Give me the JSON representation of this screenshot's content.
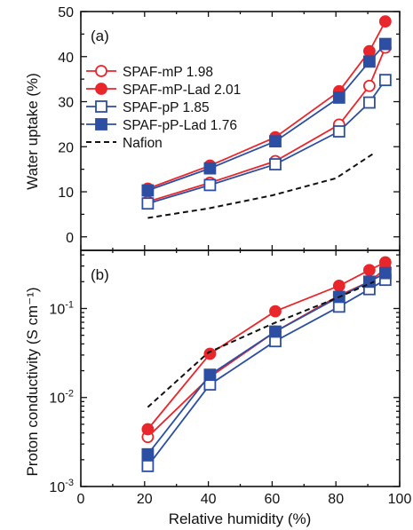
{
  "chart_data": [
    {
      "type": "line",
      "panel_label": "(a)",
      "ylabel": "Water uptake (%)",
      "xlabel": "Relative humidity (%)",
      "xlim": [
        0,
        100
      ],
      "ylim": [
        -3,
        50
      ],
      "yscale": "linear",
      "x_ticks": [
        "0",
        "20",
        "40",
        "60",
        "80",
        "100"
      ],
      "y_ticks": [
        {
          "value": 0,
          "label": "0"
        },
        {
          "value": 10,
          "label": "10"
        },
        {
          "value": 20,
          "label": "20"
        },
        {
          "value": 30,
          "label": "30"
        },
        {
          "value": 40,
          "label": "40"
        },
        {
          "value": 50,
          "label": "50"
        }
      ],
      "legend_position": "top-left",
      "series": [
        {
          "name": "SPAF-mP 1.98",
          "color": "#e8262b",
          "marker": "circle",
          "filled": false,
          "x": [
            21,
            40.5,
            61,
            81,
            90.5,
            95.5
          ],
          "y": [
            7.8,
            12,
            16.8,
            24.9,
            33.5,
            42
          ]
        },
        {
          "name": "SPAF-mP-Lad 2.01",
          "color": "#e8262b",
          "marker": "circle",
          "filled": true,
          "x": [
            21,
            40.5,
            61,
            81,
            90.5,
            95.5
          ],
          "y": [
            10.7,
            15.8,
            22.1,
            32.3,
            41.2,
            47.8
          ]
        },
        {
          "name": "SPAF-pP 1.85",
          "color": "#2c4ea3",
          "marker": "square",
          "filled": false,
          "x": [
            21,
            40.5,
            61,
            81,
            90.5,
            95.5
          ],
          "y": [
            7.4,
            11.5,
            16.1,
            23.4,
            29.8,
            34.8
          ]
        },
        {
          "name": "SPAF-pP-Lad 1.76",
          "color": "#2c4ea3",
          "marker": "square",
          "filled": true,
          "x": [
            21,
            40.5,
            61,
            81,
            90.5,
            95.5
          ],
          "y": [
            10.3,
            15.2,
            21.2,
            30.9,
            38.9,
            42.8
          ]
        },
        {
          "name": "Nafion",
          "color": "#111111",
          "marker": "none",
          "dashed": true,
          "x": [
            21,
            40,
            60,
            80,
            92
          ],
          "y": [
            4.2,
            6.3,
            9.2,
            13,
            18.6
          ]
        }
      ]
    },
    {
      "type": "line",
      "panel_label": "(b)",
      "ylabel": "Proton conductivity (S cm⁻¹)",
      "xlabel": "Relative humidity (%)",
      "xlim": [
        0,
        100
      ],
      "ylim": [
        0.001,
        0.45
      ],
      "yscale": "log",
      "x_ticks": [
        "0",
        "20",
        "40",
        "60",
        "80",
        "100"
      ],
      "y_ticks": [
        {
          "value": 0.001,
          "base": "10",
          "exp": "-3"
        },
        {
          "value": 0.01,
          "base": "10",
          "exp": "-2"
        },
        {
          "value": 0.1,
          "base": "10",
          "exp": "-1"
        }
      ],
      "series": [
        {
          "name": "SPAF-mP 1.98",
          "color": "#e8262b",
          "marker": "circle",
          "filled": false,
          "x": [
            21,
            40.5,
            61,
            81,
            90.5,
            95.5
          ],
          "y": [
            0.0036,
            0.017,
            0.055,
            0.14,
            0.2,
            0.28
          ]
        },
        {
          "name": "SPAF-mP-Lad 2.01",
          "color": "#e8262b",
          "marker": "circle",
          "filled": true,
          "x": [
            21,
            40.5,
            61,
            81,
            90.5,
            95.5
          ],
          "y": [
            0.0044,
            0.031,
            0.093,
            0.18,
            0.27,
            0.33
          ]
        },
        {
          "name": "SPAF-pP 1.85",
          "color": "#2c4ea3",
          "marker": "square",
          "filled": false,
          "x": [
            21,
            40.5,
            61,
            81,
            90.5,
            95.5
          ],
          "y": [
            0.0017,
            0.014,
            0.043,
            0.105,
            0.165,
            0.21
          ]
        },
        {
          "name": "SPAF-pP-Lad 1.76",
          "color": "#2c4ea3",
          "marker": "square",
          "filled": true,
          "x": [
            21,
            40.5,
            61,
            81,
            90.5,
            95.5
          ],
          "y": [
            0.0023,
            0.018,
            0.055,
            0.135,
            0.2,
            0.25
          ]
        },
        {
          "name": "Nafion",
          "color": "#111111",
          "marker": "none",
          "dashed": true,
          "x": [
            21,
            40,
            60,
            80,
            92
          ],
          "y": [
            0.0078,
            0.032,
            0.067,
            0.13,
            0.2
          ]
        }
      ]
    }
  ]
}
